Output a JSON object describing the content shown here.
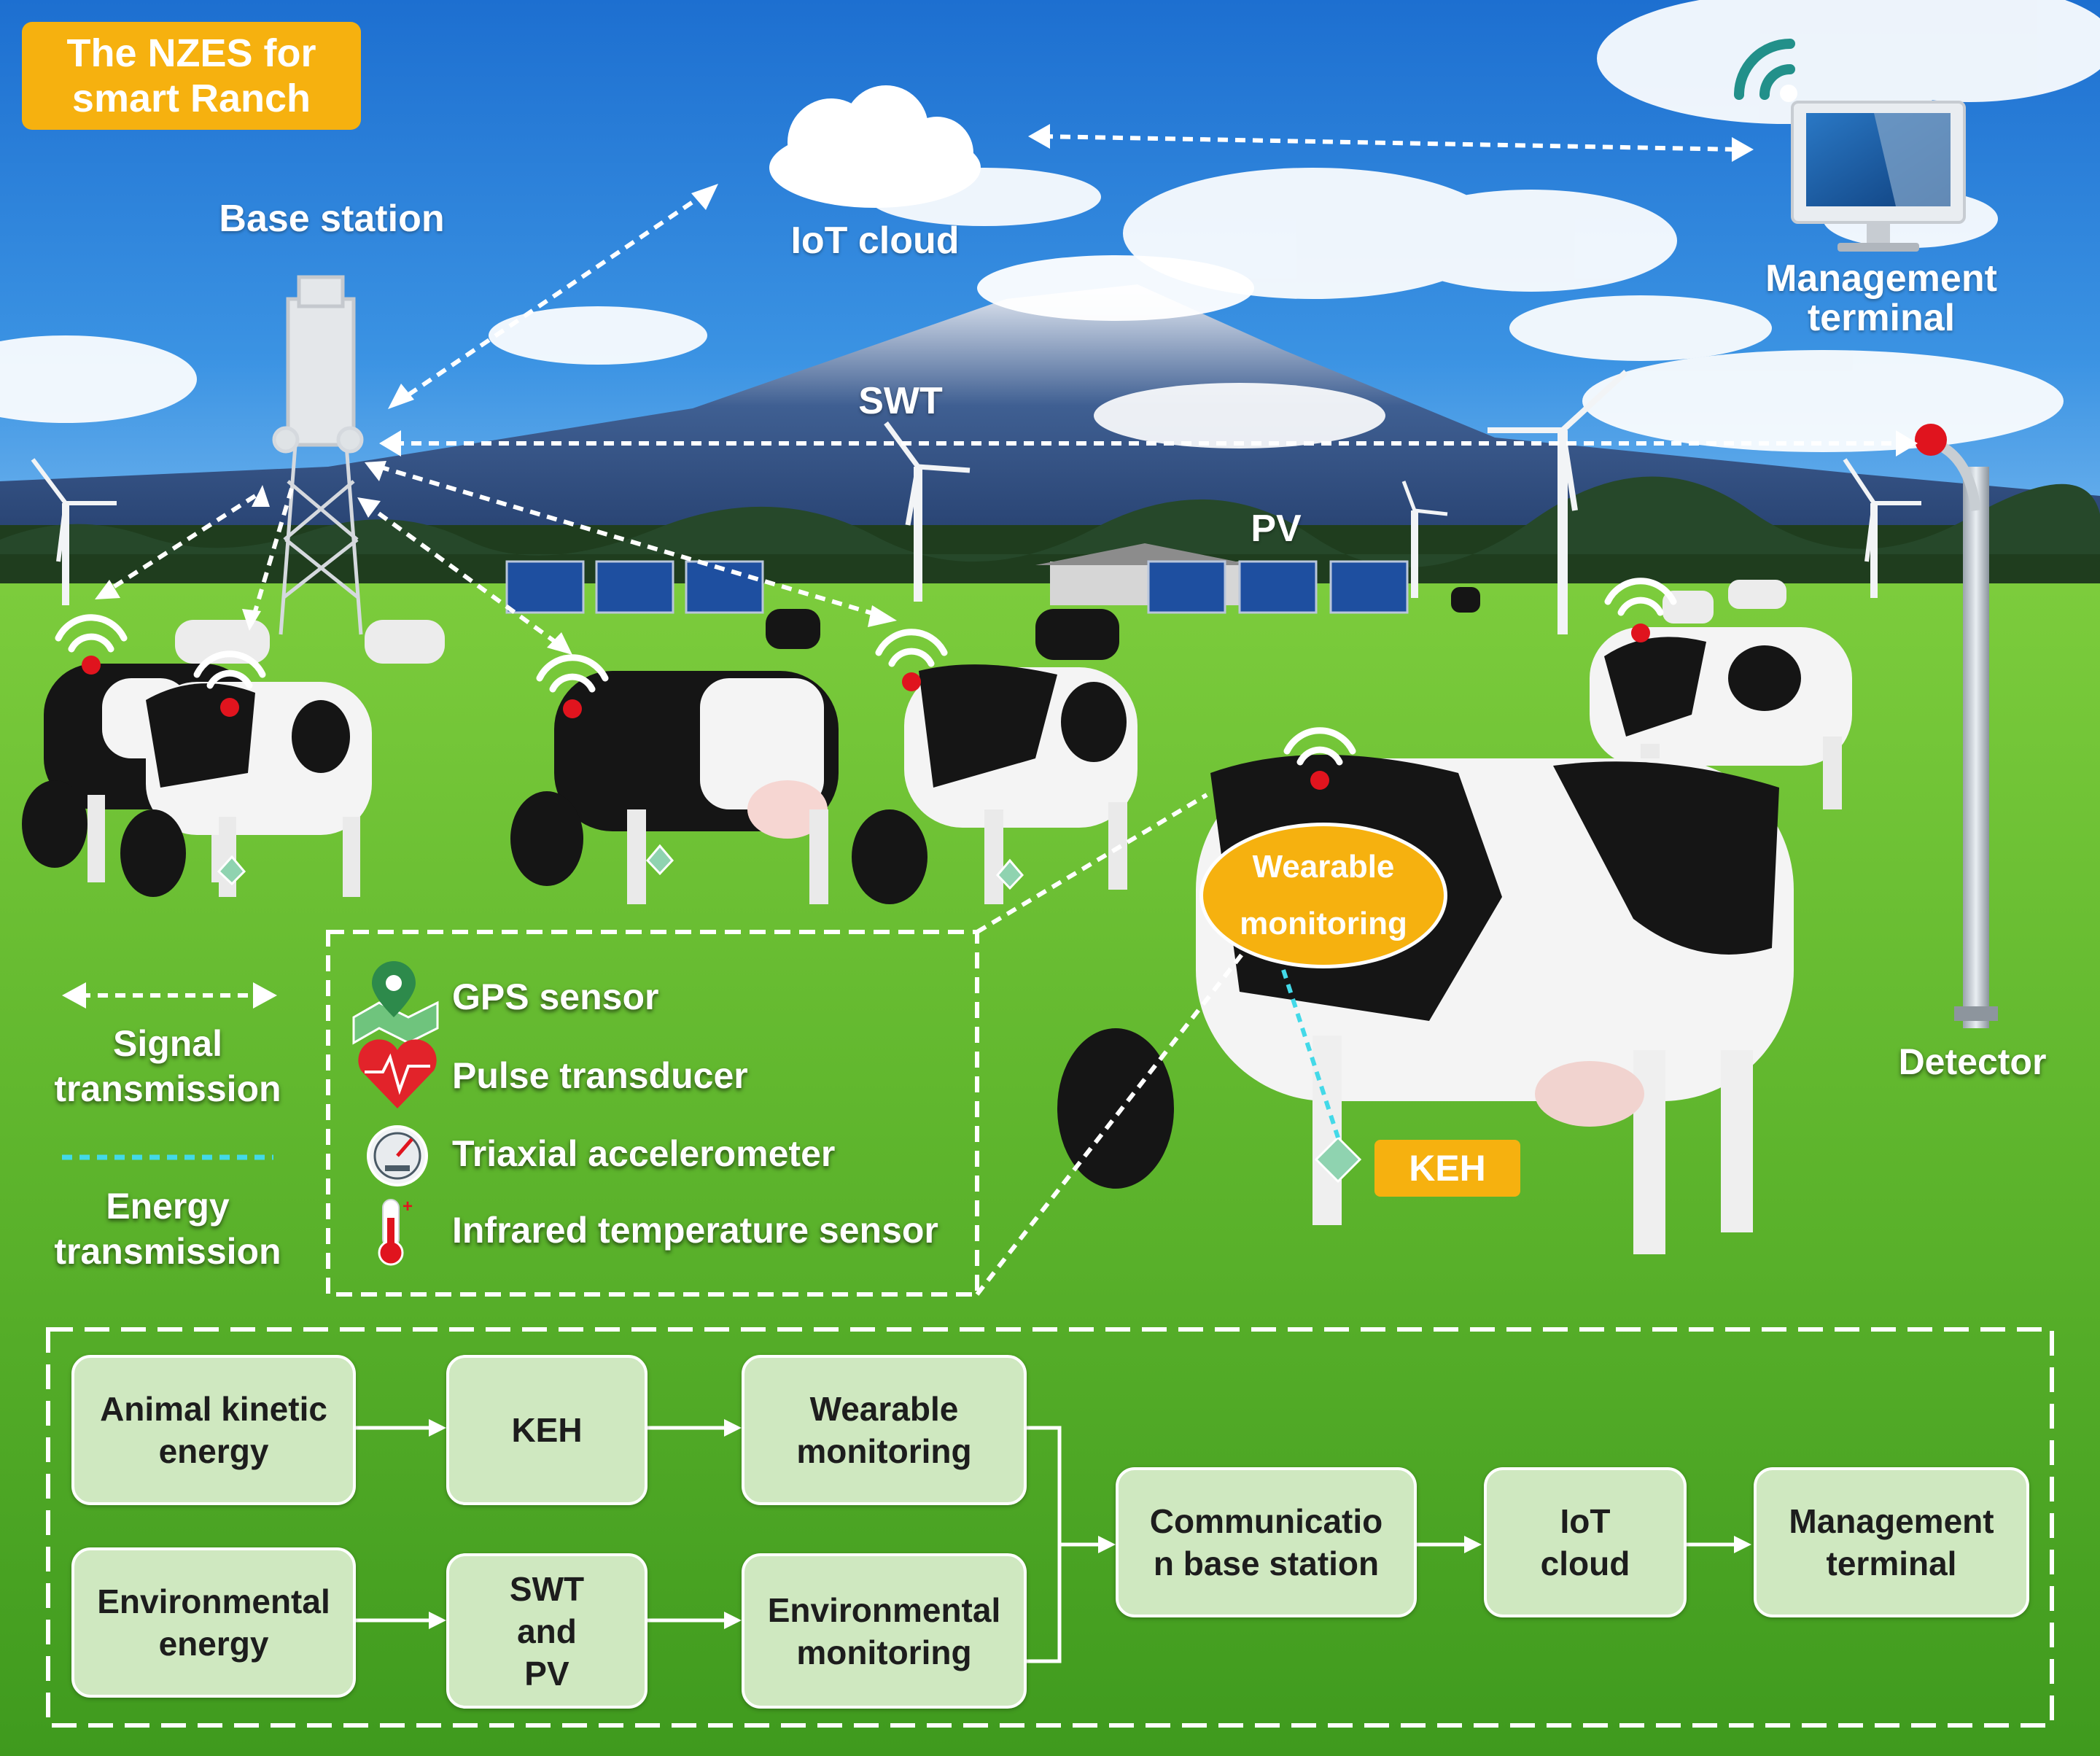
{
  "title": "The NZES for\nsmart Ranch",
  "labels": {
    "base_station": "Base station",
    "iot_cloud": "IoT cloud",
    "management_terminal": "Management\nterminal",
    "swt": "SWT",
    "pv": "PV",
    "detector": "Detector",
    "wearable_monitoring": "Wearable\nmonitoring",
    "keh": "KEH"
  },
  "legend": {
    "signal": "Signal\ntransmission",
    "energy": "Energy\ntransmission"
  },
  "sensors": [
    {
      "icon": "gps-map-icon",
      "label": "GPS sensor"
    },
    {
      "icon": "heart-pulse-icon",
      "label": "Pulse transducer"
    },
    {
      "icon": "gauge-icon",
      "label": "Triaxial accelerometer"
    },
    {
      "icon": "thermometer-icon",
      "label": "Infrared temperature sensor"
    }
  ],
  "flow": {
    "animal_kinetic": "Animal kinetic\nenergy",
    "keh": "KEH",
    "wearable": "Wearable\nmonitoring",
    "environmental_energy": "Environmental\nenergy",
    "swt_pv": "SWT\nand\nPV",
    "environmental_monitoring": "Environmental\nmonitoring",
    "comm_base": "Communicatio\nn base station",
    "iot_cloud": "IoT\ncloud",
    "management": "Management\nterminal"
  },
  "colors": {
    "badge": "#f6b10f",
    "flow_box": "#cfe8c0",
    "signal_dot": "#e0141e",
    "energy_line": "#43d9e8"
  }
}
